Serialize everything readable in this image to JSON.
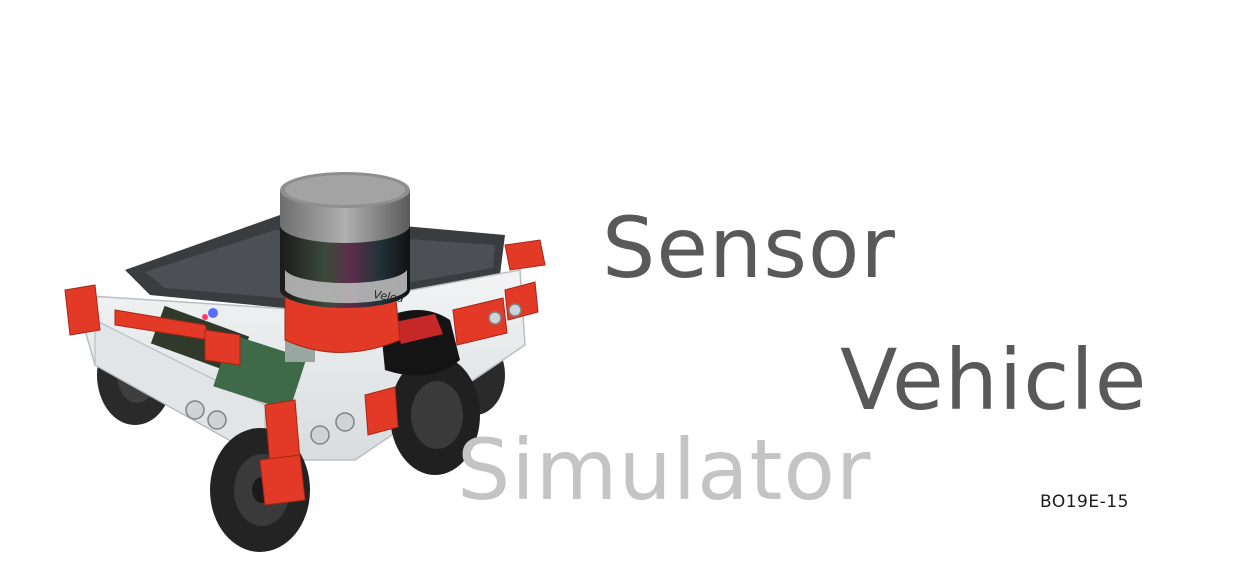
{
  "title": {
    "line1": "Sensor",
    "line2": "Vehicle",
    "line3": "Simulator"
  },
  "project_code": "BO19E-15",
  "image": {
    "lidar_brand_text": "Velod"
  },
  "colors": {
    "title_dark": "#595959",
    "title_light": "#c4c4c4",
    "frame_red": "#e23a26",
    "acrylic": "#e8ecee",
    "tire": "#2a2a2a"
  }
}
